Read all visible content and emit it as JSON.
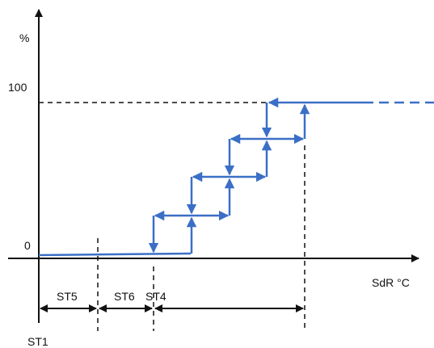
{
  "axes": {
    "y_unit": "%",
    "y_high": "100",
    "y_low": "0",
    "x_label": "SdR °C"
  },
  "intervals": {
    "st5": "ST5",
    "st6": "ST6",
    "st4": "ST4",
    "st1": "ST1"
  }
}
